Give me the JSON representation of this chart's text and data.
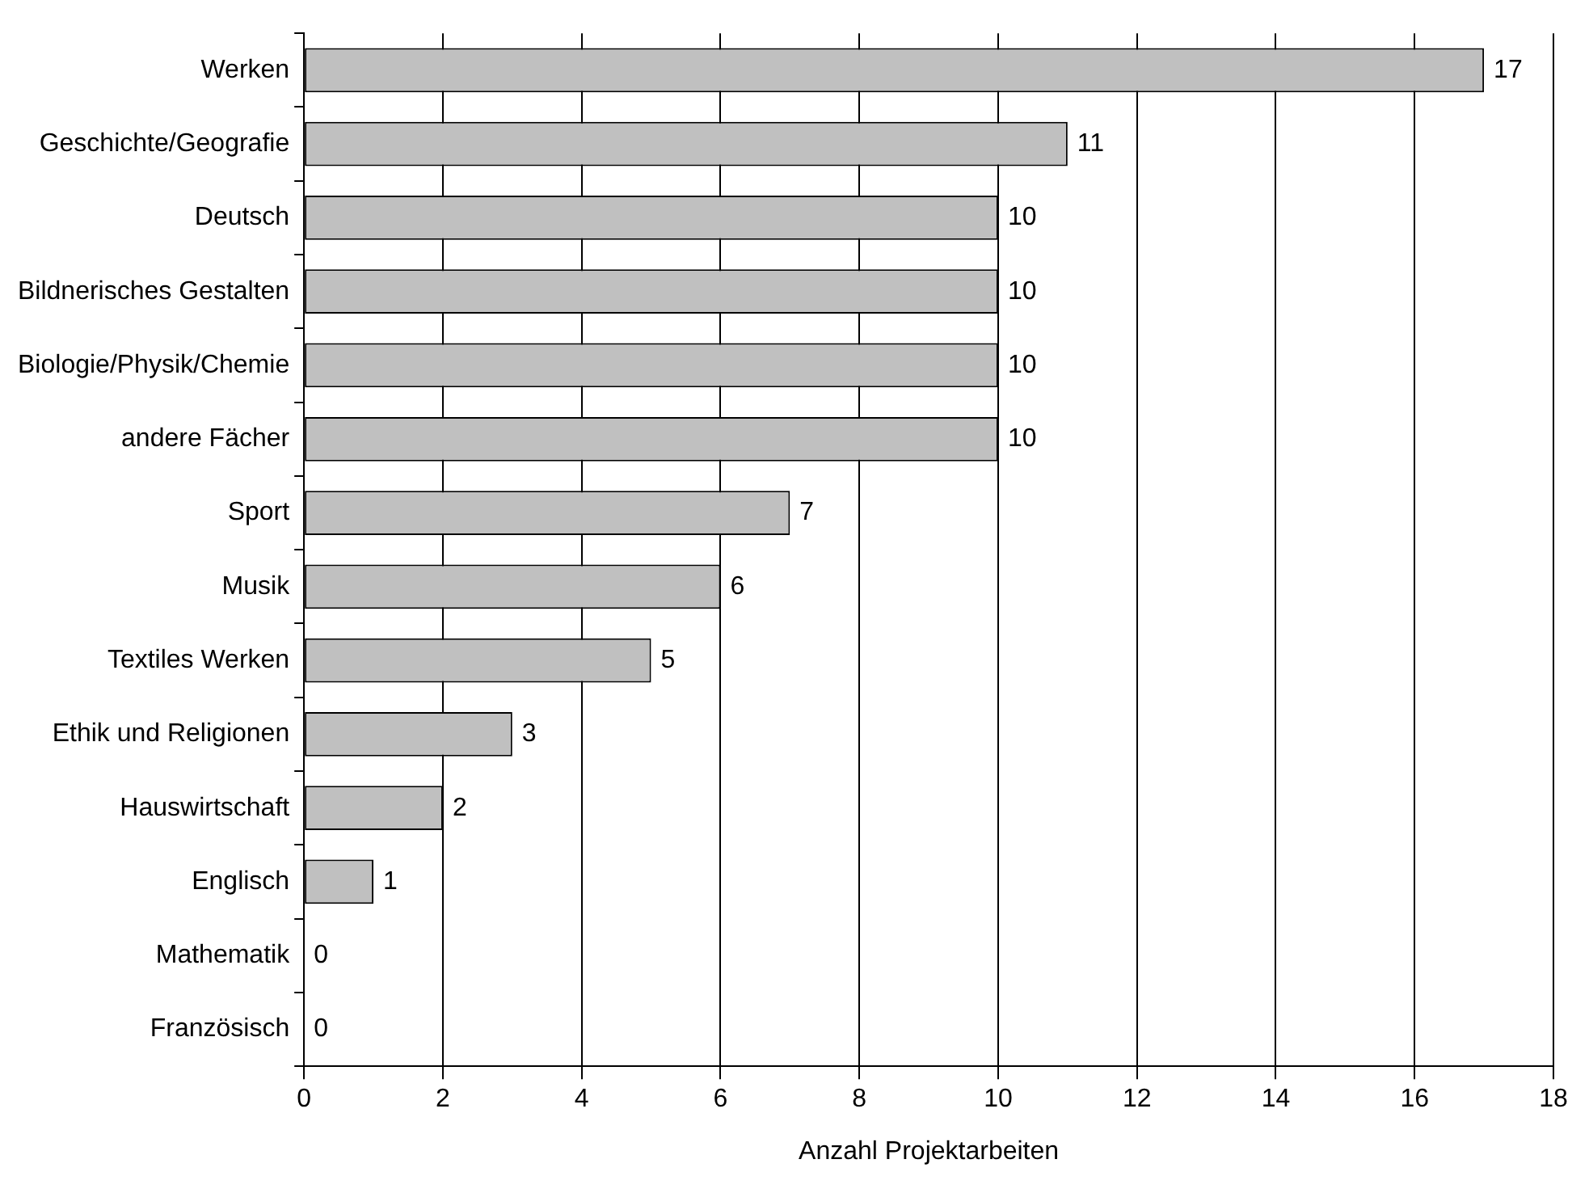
{
  "chart_data": {
    "type": "bar",
    "orientation": "horizontal",
    "xlabel": "Anzahl Projektarbeiten",
    "categories": [
      "Werken",
      "Geschichte/Geografie",
      "Deutsch",
      "Bildnerisches Gestalten",
      "Biologie/Physik/Chemie",
      "andere Fächer",
      "Sport",
      "Musik",
      "Textiles Werken",
      "Ethik und Religionen",
      "Hauswirtschaft",
      "Englisch",
      "Mathematik",
      "Französisch"
    ],
    "values": [
      17,
      11,
      10,
      10,
      10,
      10,
      7,
      6,
      5,
      3,
      2,
      1,
      0,
      0
    ],
    "color": "#c0c0c0",
    "xlim": [
      0,
      18
    ],
    "xticks": [
      0,
      2,
      4,
      6,
      8,
      10,
      12,
      14,
      16,
      18
    ],
    "grid": "x",
    "data_labels": true,
    "legend": false
  }
}
